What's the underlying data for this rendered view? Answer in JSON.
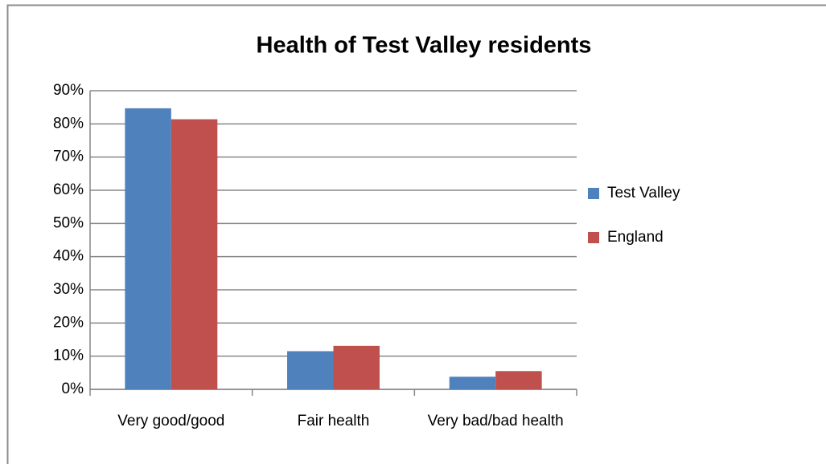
{
  "chart_data": {
    "type": "bar",
    "title": "Health of Test Valley residents",
    "categories": [
      "Very good/good",
      "Fair health",
      "Very bad/bad health"
    ],
    "series": [
      {
        "name": "Test Valley",
        "color": "#4f81bd",
        "values": [
          84.7,
          11.5,
          3.8
        ]
      },
      {
        "name": "England",
        "color": "#c0504d",
        "values": [
          81.4,
          13.1,
          5.5
        ]
      }
    ],
    "ylim": [
      0,
      90
    ],
    "yticks": [
      {
        "value": 0,
        "label": "0%"
      },
      {
        "value": 10,
        "label": "10%"
      },
      {
        "value": 20,
        "label": "20%"
      },
      {
        "value": 30,
        "label": "30%"
      },
      {
        "value": 40,
        "label": "40%"
      },
      {
        "value": 50,
        "label": "50%"
      },
      {
        "value": 60,
        "label": "60%"
      },
      {
        "value": 70,
        "label": "70%"
      },
      {
        "value": 80,
        "label": "80%"
      },
      {
        "value": 90,
        "label": "90%"
      }
    ],
    "grid": true,
    "legend": "right"
  }
}
